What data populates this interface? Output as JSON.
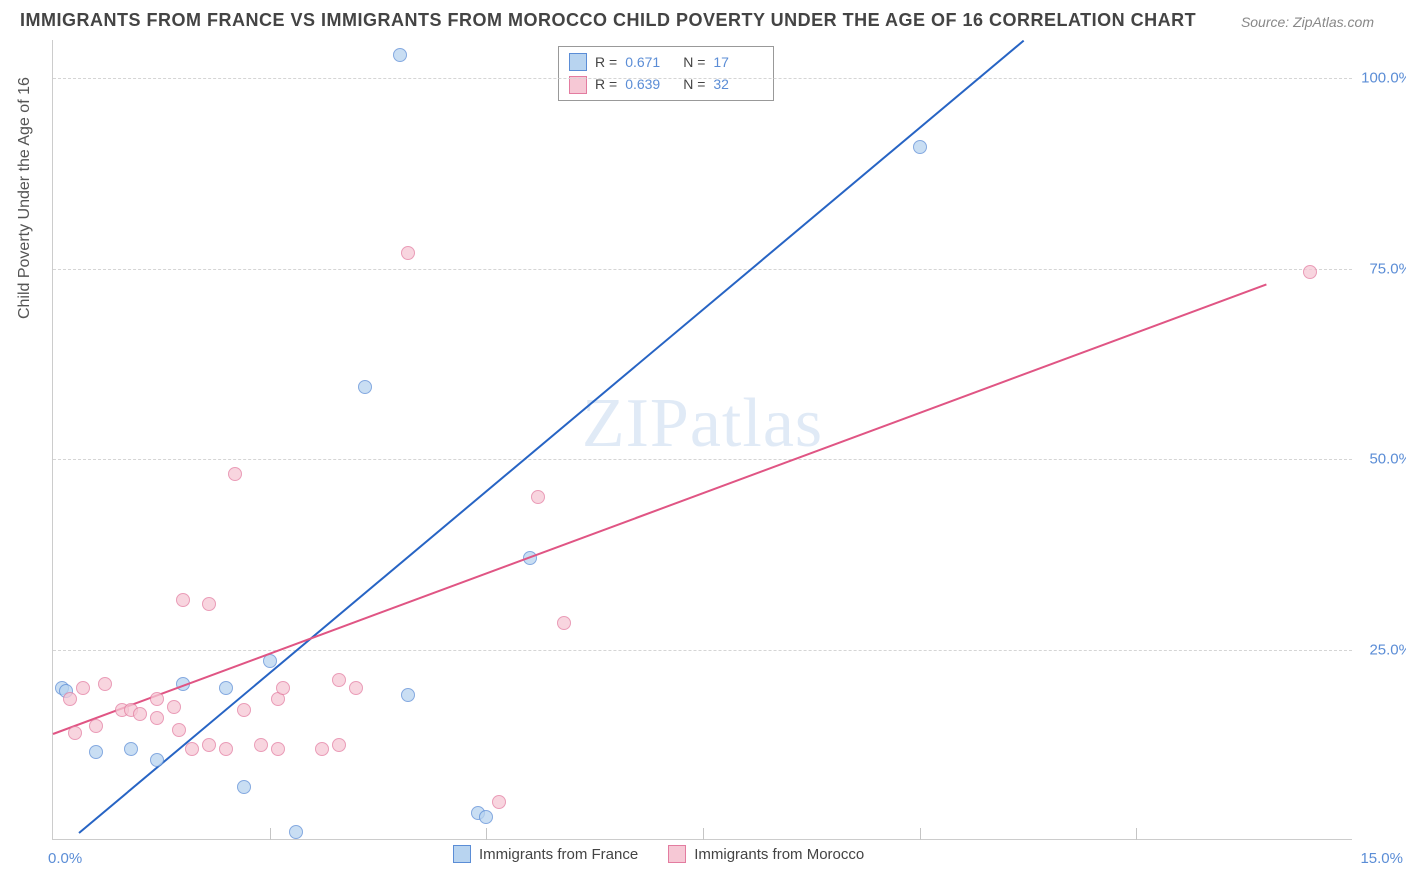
{
  "title": "IMMIGRANTS FROM FRANCE VS IMMIGRANTS FROM MOROCCO CHILD POVERTY UNDER THE AGE OF 16 CORRELATION CHART",
  "source_label": "Source: ",
  "source_name": "ZipAtlas.com",
  "watermark": "ZIPatlas",
  "ylabel": "Child Poverty Under the Age of 16",
  "chart": {
    "type": "scatter",
    "xlim": [
      0,
      15
    ],
    "ylim": [
      0,
      105
    ],
    "y_ticks": [
      25,
      50,
      75,
      100
    ],
    "y_tick_labels": [
      "25.0%",
      "50.0%",
      "75.0%",
      "100.0%"
    ],
    "x_ticks": [
      0,
      5,
      10,
      15
    ],
    "x_tick_labels": [
      "0.0%",
      "",
      "",
      "15.0%"
    ],
    "x_minor_dividers": [
      2.5,
      5,
      7.5,
      10,
      12.5
    ],
    "grid_color": "#d5d5d5",
    "background_color": "#ffffff",
    "axis_color": "#cccccc",
    "tick_label_color": "#5b8dd6",
    "tick_fontsize": 15,
    "ylabel_fontsize": 16,
    "title_fontsize": 18,
    "marker_size": 14,
    "marker_opacity": 0.75,
    "line_width": 2
  },
  "series": [
    {
      "name": "Immigrants from France",
      "color_fill": "#b8d4f0",
      "color_stroke": "#5b8dd6",
      "line_color": "#2764c4",
      "R": "0.671",
      "N": "17",
      "points": [
        [
          4.0,
          103.0
        ],
        [
          10.0,
          91.0
        ],
        [
          3.6,
          59.5
        ],
        [
          5.5,
          37.0
        ],
        [
          2.5,
          23.5
        ],
        [
          4.1,
          19.0
        ],
        [
          0.1,
          20.0
        ],
        [
          0.15,
          19.5
        ],
        [
          0.9,
          12.0
        ],
        [
          2.0,
          20.0
        ],
        [
          1.2,
          10.5
        ],
        [
          0.5,
          11.5
        ],
        [
          2.2,
          7.0
        ],
        [
          2.8,
          1.0
        ],
        [
          4.9,
          3.5
        ],
        [
          5.0,
          3.0
        ],
        [
          1.5,
          20.5
        ]
      ],
      "trend": {
        "x1": 0.3,
        "y1": 1.0,
        "x2": 11.2,
        "y2": 105.0
      }
    },
    {
      "name": "Immigrants from Morocco",
      "color_fill": "#f6c8d5",
      "color_stroke": "#e37ca0",
      "line_color": "#e05584",
      "R": "0.639",
      "N": "32",
      "points": [
        [
          4.1,
          77.0
        ],
        [
          14.5,
          74.5
        ],
        [
          5.6,
          45.0
        ],
        [
          2.1,
          48.0
        ],
        [
          5.9,
          28.5
        ],
        [
          1.5,
          31.5
        ],
        [
          1.8,
          31.0
        ],
        [
          0.2,
          18.5
        ],
        [
          0.35,
          20.0
        ],
        [
          0.6,
          20.5
        ],
        [
          0.8,
          17.0
        ],
        [
          0.5,
          15.0
        ],
        [
          0.9,
          17.0
        ],
        [
          1.0,
          16.5
        ],
        [
          1.2,
          18.5
        ],
        [
          1.2,
          16.0
        ],
        [
          1.4,
          17.5
        ],
        [
          1.45,
          14.5
        ],
        [
          1.6,
          12.0
        ],
        [
          1.8,
          12.5
        ],
        [
          2.0,
          12.0
        ],
        [
          2.2,
          17.0
        ],
        [
          2.4,
          12.5
        ],
        [
          2.6,
          18.5
        ],
        [
          2.6,
          12.0
        ],
        [
          2.65,
          20.0
        ],
        [
          3.1,
          12.0
        ],
        [
          3.3,
          21.0
        ],
        [
          3.3,
          12.5
        ],
        [
          3.5,
          20.0
        ],
        [
          5.15,
          5.0
        ],
        [
          0.25,
          14.0
        ]
      ],
      "trend": {
        "x1": 0.0,
        "y1": 14.0,
        "x2": 14.0,
        "y2": 73.0
      }
    }
  ],
  "legend_corr_labels": {
    "R": "R  =",
    "N": "N  ="
  },
  "legend_bottom": {
    "items": [
      "Immigrants from France",
      "Immigrants from Morocco"
    ]
  }
}
